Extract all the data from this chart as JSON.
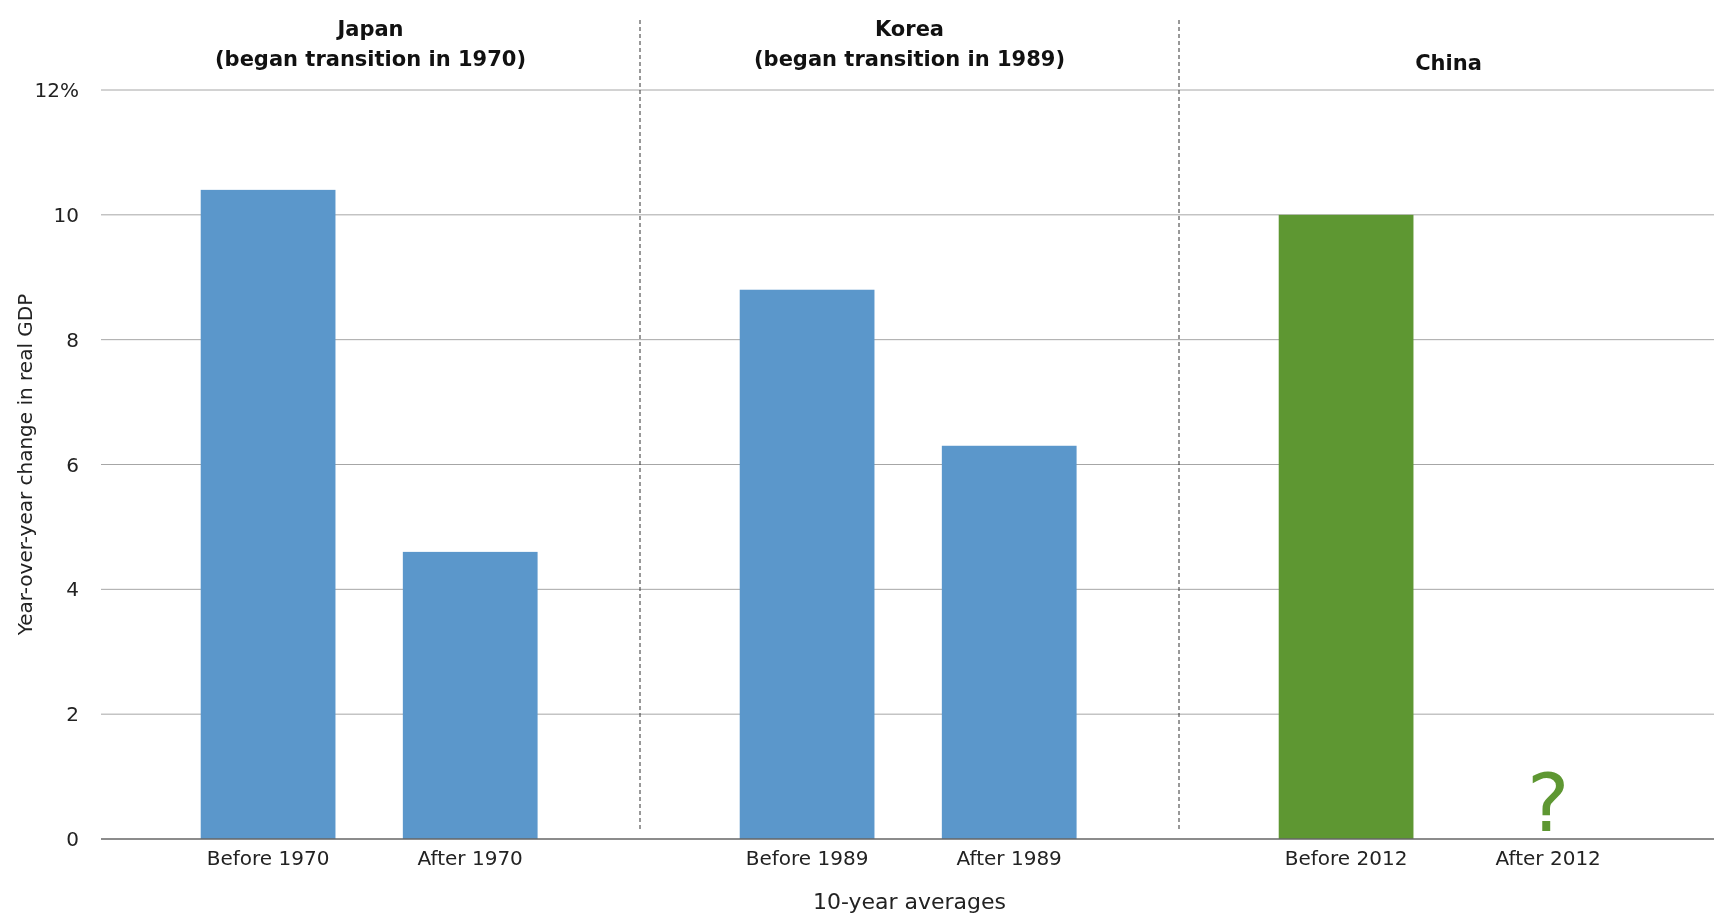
{
  "chart_data": {
    "type": "bar",
    "xlabel": "10-year averages",
    "ylabel": "Year-over-year change in real GDP",
    "categories": [
      "Before 1970",
      "After 1970",
      "Before 1989",
      "After 1989",
      "Before 2012",
      "After 2012"
    ],
    "values": [
      10.4,
      4.6,
      8.8,
      6.3,
      10.0,
      null
    ],
    "colors": [
      "#5b97cb",
      "#5b97cb",
      "#5b97cb",
      "#5b97cb",
      "#5e9732",
      "#5e9732"
    ],
    "ylim": [
      0,
      12
    ],
    "yticks": [
      0,
      2,
      4,
      6,
      8,
      10,
      {
        "value": 12,
        "label": "12%"
      }
    ],
    "grid": "y",
    "annotations": [
      "Japan\n(began transition in 1970)",
      "Korea\n(began transition in 1989)",
      "China",
      "?"
    ]
  }
}
